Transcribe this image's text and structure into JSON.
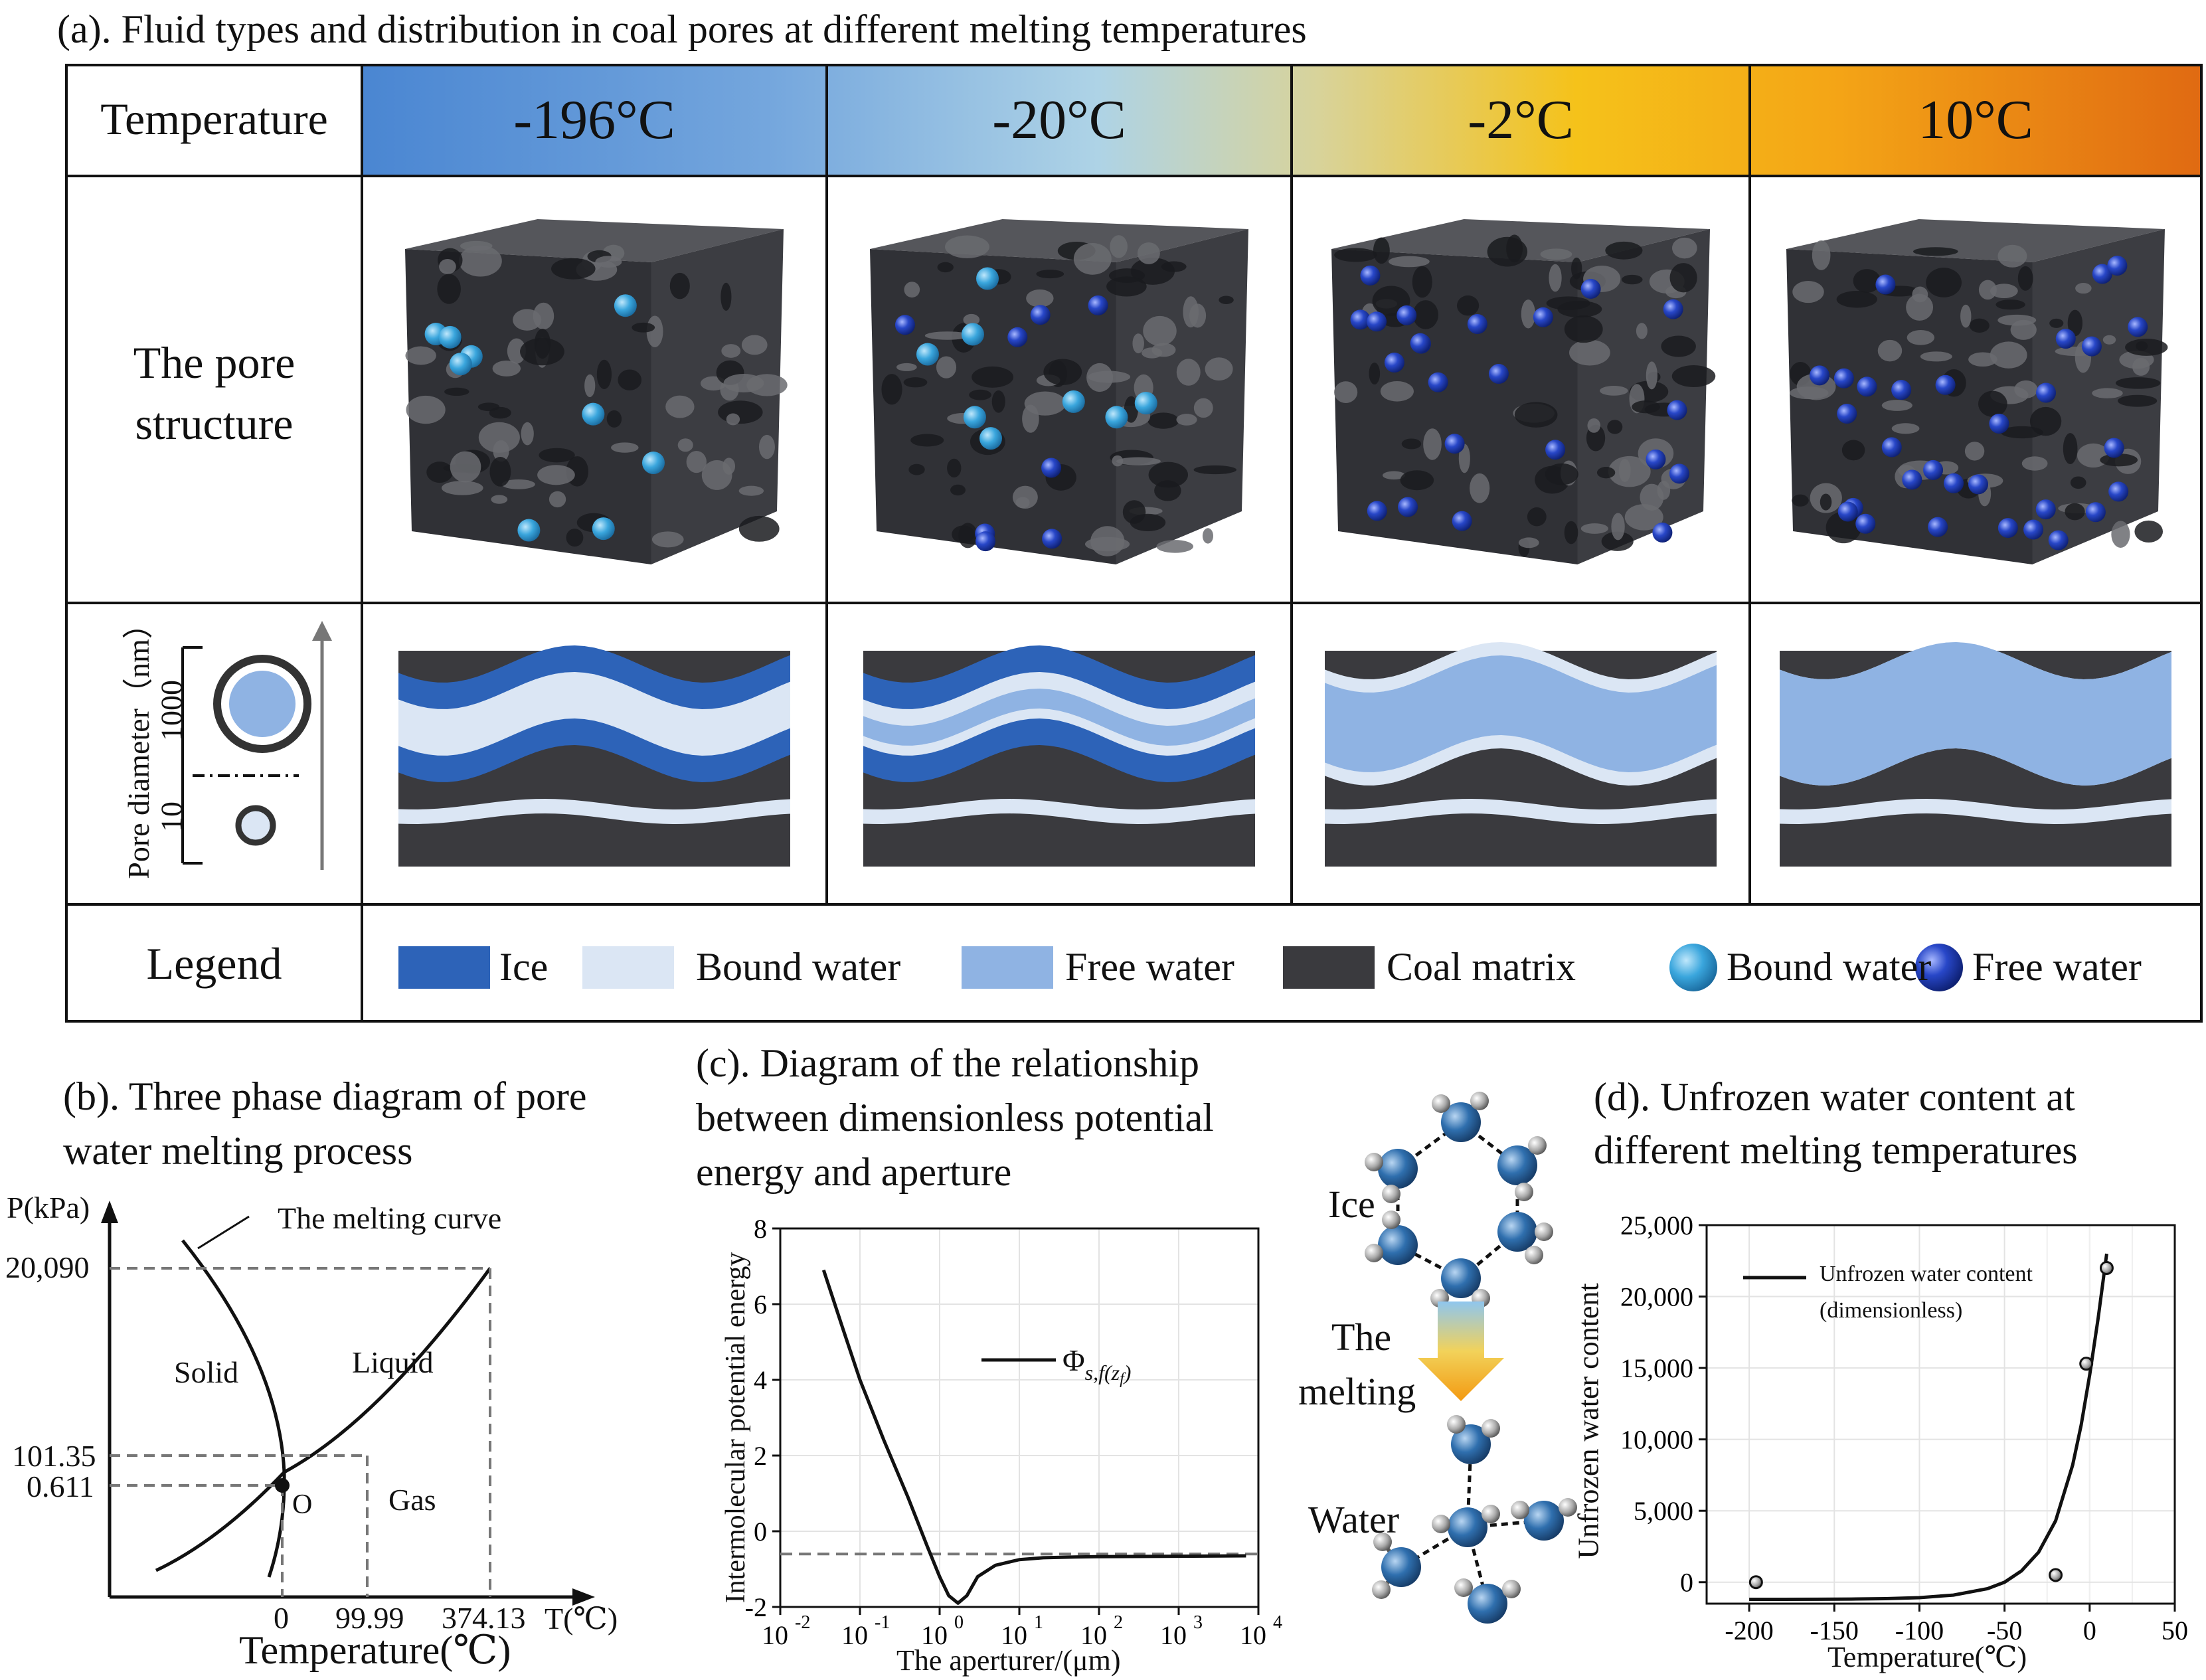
{
  "panel_a": {
    "title": "(a). Fluid types and distribution in coal pores at different melting temperatures",
    "row_headers": {
      "temperature": "Temperature",
      "pore_structure": "The pore structure",
      "legend": "Legend"
    },
    "pore_axis": {
      "label": "Pore diameter（nm）",
      "tick_1000": "1000",
      "tick_10": "10"
    },
    "temperatures": [
      "-196°C",
      "-20°C",
      "-2°C",
      "10°C"
    ],
    "legend_items": [
      "Ice",
      "Bound water",
      "Free water",
      "Coal matrix",
      "Bound water",
      "Free water"
    ],
    "colors": {
      "ice": "#2d63b8",
      "bound_water": "#dbe6f4",
      "free_water": "#8fb3e3",
      "coal_matrix": "#3a3a3e",
      "bound_ball": "#3aa6dd",
      "free_ball": "#1e3fb4"
    }
  },
  "panel_b": {
    "title_line1": "(b). Three phase diagram of pore",
    "title_line2": "water melting process",
    "y_axis": "P(kPa)",
    "x_axis": "T(℃)",
    "x_title": "Temperature(℃)",
    "melting_curve_label": "The melting curve",
    "regions": {
      "solid": "Solid",
      "liquid": "Liquid",
      "gas": "Gas"
    },
    "triple_point": "O",
    "y_ticks": [
      "20,090",
      "101.35",
      "0.611"
    ],
    "x_ticks": [
      "0",
      "99.99",
      "374.13"
    ]
  },
  "panel_c": {
    "title_line1": "(c). Diagram of the relationship",
    "title_line2": "between dimensionless potential",
    "title_line3": "energy and aperture",
    "molecule_labels": {
      "ice": "Ice",
      "melting_1": "The",
      "melting_2": "melting",
      "water": "Water"
    },
    "chart_data": {
      "type": "line",
      "xlabel": "The aperturer/(μm)",
      "ylabel": "Intermolecular potential energy",
      "x_scale": "log",
      "xlim": [
        0.01,
        10000
      ],
      "ylim": [
        -2,
        8
      ],
      "y_ticks": [
        "-2",
        "0",
        "2",
        "4",
        "6",
        "8"
      ],
      "x_tick_bases": [
        "10",
        "10",
        "10",
        "10",
        "10",
        "10",
        "10"
      ],
      "x_tick_exps": [
        "-2",
        "-1",
        "0",
        "1",
        "2",
        "3",
        "4"
      ],
      "reference_line_y": -0.6,
      "series": [
        {
          "legend_base": "Φ",
          "legend_sub": "s,f(z",
          "legend_subsub": "f",
          "legend_close": ")",
          "x": [
            0.035,
            0.06,
            0.1,
            0.2,
            0.4,
            0.7,
            1.0,
            1.3,
            1.7,
            2.2,
            3,
            5,
            10,
            20,
            50,
            100,
            1000,
            7000
          ],
          "y": [
            6.9,
            5.4,
            4.0,
            2.4,
            0.9,
            -0.4,
            -1.2,
            -1.7,
            -1.9,
            -1.7,
            -1.2,
            -0.9,
            -0.75,
            -0.7,
            -0.68,
            -0.67,
            -0.66,
            -0.65
          ]
        }
      ]
    }
  },
  "panel_d": {
    "title_line1": "(d). Unfrozen water content at",
    "title_line2": "different melting temperatures",
    "chart_data": {
      "type": "scatter",
      "xlabel": "Temperature(℃)",
      "ylabel": "Unfrozen water content",
      "xlim": [
        -225,
        50
      ],
      "ylim": [
        -1500,
        25000
      ],
      "x_ticks": [
        -200,
        -150,
        -100,
        -50,
        0,
        50
      ],
      "x_tick_labels": [
        "-200",
        "-150",
        "-100",
        "-50",
        "0",
        "50"
      ],
      "y_ticks": [
        0,
        5000,
        10000,
        15000,
        20000,
        25000
      ],
      "y_tick_labels": [
        "0",
        "5,000",
        "10,000",
        "15,000",
        "20,000",
        "25,000"
      ],
      "legend_line1": "Unfrozen water content",
      "legend_line2": "(dimensionless)",
      "points": {
        "x": [
          -196,
          -20,
          -2,
          10
        ],
        "y": [
          0,
          500,
          15300,
          22000
        ]
      },
      "fit_curve": {
        "x": [
          -200,
          -180,
          -160,
          -140,
          -120,
          -100,
          -80,
          -60,
          -50,
          -40,
          -30,
          -20,
          -10,
          -5,
          0,
          5,
          10
        ],
        "y": [
          -1200,
          -1200,
          -1190,
          -1180,
          -1150,
          -1080,
          -900,
          -450,
          0,
          800,
          2100,
          4300,
          8200,
          11000,
          14500,
          18500,
          23000
        ]
      }
    }
  }
}
